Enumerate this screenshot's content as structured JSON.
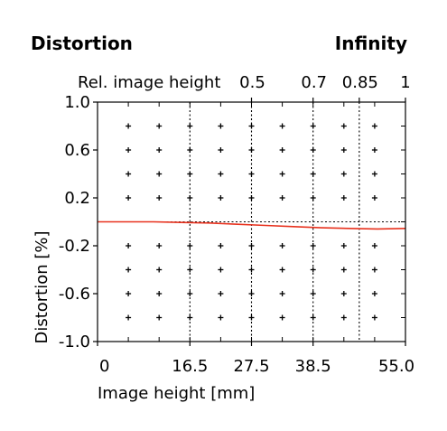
{
  "header": {
    "title_left": "Distortion",
    "title_right": "Infinity"
  },
  "chart_data": {
    "type": "line",
    "title": "Distortion",
    "subtitle": "Infinity",
    "xlabel": "Image height [mm]",
    "ylabel": "Distortion [%]",
    "xlim": [
      0,
      55.0
    ],
    "ylim": [
      -1.0,
      1.0
    ],
    "x_ticks": [
      {
        "value": 0,
        "label": "0"
      },
      {
        "value": 16.5,
        "label": "16.5"
      },
      {
        "value": 27.5,
        "label": "27.5"
      },
      {
        "value": 38.5,
        "label": "38.5"
      },
      {
        "value": 55.0,
        "label": "55.0"
      }
    ],
    "y_ticks": [
      {
        "value": 1.0,
        "label": "1.0"
      },
      {
        "value": 0.6,
        "label": "0.6"
      },
      {
        "value": 0.2,
        "label": "0.2"
      },
      {
        "value": -0.2,
        "label": "-0.2"
      },
      {
        "value": -0.6,
        "label": "-0.6"
      },
      {
        "value": -1.0,
        "label": "-1.0"
      }
    ],
    "top_axis": {
      "label": "Rel. image height",
      "ticks": [
        {
          "value": 0.5,
          "label": "0.5"
        },
        {
          "value": 0.7,
          "label": "0.7"
        },
        {
          "value": 0.85,
          "label": "0.85"
        },
        {
          "value": 1,
          "label": "1"
        }
      ]
    },
    "grid": true,
    "series": [
      {
        "color": "#e8321e",
        "x": [
          0,
          5,
          10,
          15,
          20,
          25,
          30,
          35,
          40,
          45,
          50,
          55
        ],
        "y": [
          0.0,
          0.0,
          0.0,
          -0.005,
          -0.01,
          -0.02,
          -0.03,
          -0.04,
          -0.05,
          -0.055,
          -0.06,
          -0.055
        ]
      }
    ],
    "zero_line": 0
  }
}
